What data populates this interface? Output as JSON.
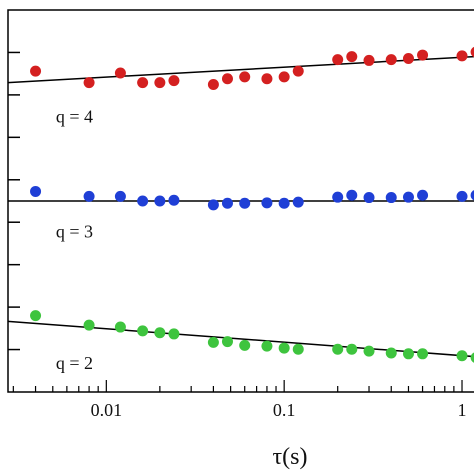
{
  "chart_data": {
    "type": "scatter",
    "xscale": "log",
    "xlim": [
      0.0028,
      1.4
    ],
    "ylim": [
      0,
      1
    ],
    "grid": false,
    "title": "",
    "xlabel": "τ(s)",
    "ylabel": "",
    "x_tick_labels": [
      {
        "x": 0.01,
        "label": "0.01"
      },
      {
        "x": 0.1,
        "label": "0.1"
      },
      {
        "x": 1,
        "label": "1"
      }
    ],
    "series": [
      {
        "name": "q = 4",
        "color": "#d42020",
        "label_at": {
          "x": 0.0052,
          "y": 0.705
        },
        "fit": {
          "x": [
            0.0028,
            1.4
          ],
          "y": [
            0.81,
            0.88
          ]
        },
        "points": [
          {
            "x": 0.004,
            "y": 0.84
          },
          {
            "x": 0.008,
            "y": 0.81
          },
          {
            "x": 0.012,
            "y": 0.835
          },
          {
            "x": 0.016,
            "y": 0.81
          },
          {
            "x": 0.02,
            "y": 0.81
          },
          {
            "x": 0.024,
            "y": 0.815
          },
          {
            "x": 0.04,
            "y": 0.805
          },
          {
            "x": 0.048,
            "y": 0.82
          },
          {
            "x": 0.06,
            "y": 0.825
          },
          {
            "x": 0.08,
            "y": 0.82
          },
          {
            "x": 0.1,
            "y": 0.825
          },
          {
            "x": 0.12,
            "y": 0.84
          },
          {
            "x": 0.2,
            "y": 0.87
          },
          {
            "x": 0.24,
            "y": 0.878
          },
          {
            "x": 0.3,
            "y": 0.868
          },
          {
            "x": 0.4,
            "y": 0.87
          },
          {
            "x": 0.5,
            "y": 0.873
          },
          {
            "x": 0.6,
            "y": 0.882
          },
          {
            "x": 1.0,
            "y": 0.88
          },
          {
            "x": 1.2,
            "y": 0.89
          }
        ]
      },
      {
        "name": "q = 3",
        "color": "#1f3fd6",
        "label_at": {
          "x": 0.0052,
          "y": 0.405
        },
        "fit": {
          "x": [
            0.0028,
            1.4
          ],
          "y": [
            0.5,
            0.5
          ]
        },
        "points": [
          {
            "x": 0.004,
            "y": 0.525
          },
          {
            "x": 0.008,
            "y": 0.512
          },
          {
            "x": 0.012,
            "y": 0.512
          },
          {
            "x": 0.016,
            "y": 0.5
          },
          {
            "x": 0.02,
            "y": 0.5
          },
          {
            "x": 0.024,
            "y": 0.502
          },
          {
            "x": 0.04,
            "y": 0.49
          },
          {
            "x": 0.048,
            "y": 0.494
          },
          {
            "x": 0.06,
            "y": 0.494
          },
          {
            "x": 0.08,
            "y": 0.495
          },
          {
            "x": 0.1,
            "y": 0.494
          },
          {
            "x": 0.12,
            "y": 0.497
          },
          {
            "x": 0.2,
            "y": 0.51
          },
          {
            "x": 0.24,
            "y": 0.515
          },
          {
            "x": 0.3,
            "y": 0.509
          },
          {
            "x": 0.4,
            "y": 0.509
          },
          {
            "x": 0.5,
            "y": 0.51
          },
          {
            "x": 0.6,
            "y": 0.515
          },
          {
            "x": 1.0,
            "y": 0.512
          },
          {
            "x": 1.2,
            "y": 0.515
          }
        ]
      },
      {
        "name": "q = 2",
        "color": "#3ec43e",
        "label_at": {
          "x": 0.0052,
          "y": 0.06
        },
        "fit": {
          "x": [
            0.0028,
            1.4
          ],
          "y": [
            0.185,
            0.09
          ]
        },
        "points": [
          {
            "x": 0.004,
            "y": 0.2
          },
          {
            "x": 0.008,
            "y": 0.175
          },
          {
            "x": 0.012,
            "y": 0.17
          },
          {
            "x": 0.016,
            "y": 0.16
          },
          {
            "x": 0.02,
            "y": 0.155
          },
          {
            "x": 0.024,
            "y": 0.152
          },
          {
            "x": 0.04,
            "y": 0.13
          },
          {
            "x": 0.048,
            "y": 0.132
          },
          {
            "x": 0.06,
            "y": 0.122
          },
          {
            "x": 0.08,
            "y": 0.12
          },
          {
            "x": 0.1,
            "y": 0.115
          },
          {
            "x": 0.12,
            "y": 0.112
          },
          {
            "x": 0.2,
            "y": 0.112
          },
          {
            "x": 0.24,
            "y": 0.112
          },
          {
            "x": 0.3,
            "y": 0.107
          },
          {
            "x": 0.4,
            "y": 0.102
          },
          {
            "x": 0.5,
            "y": 0.1
          },
          {
            "x": 0.6,
            "y": 0.1
          },
          {
            "x": 1.0,
            "y": 0.095
          },
          {
            "x": 1.2,
            "y": 0.09
          }
        ]
      }
    ]
  }
}
